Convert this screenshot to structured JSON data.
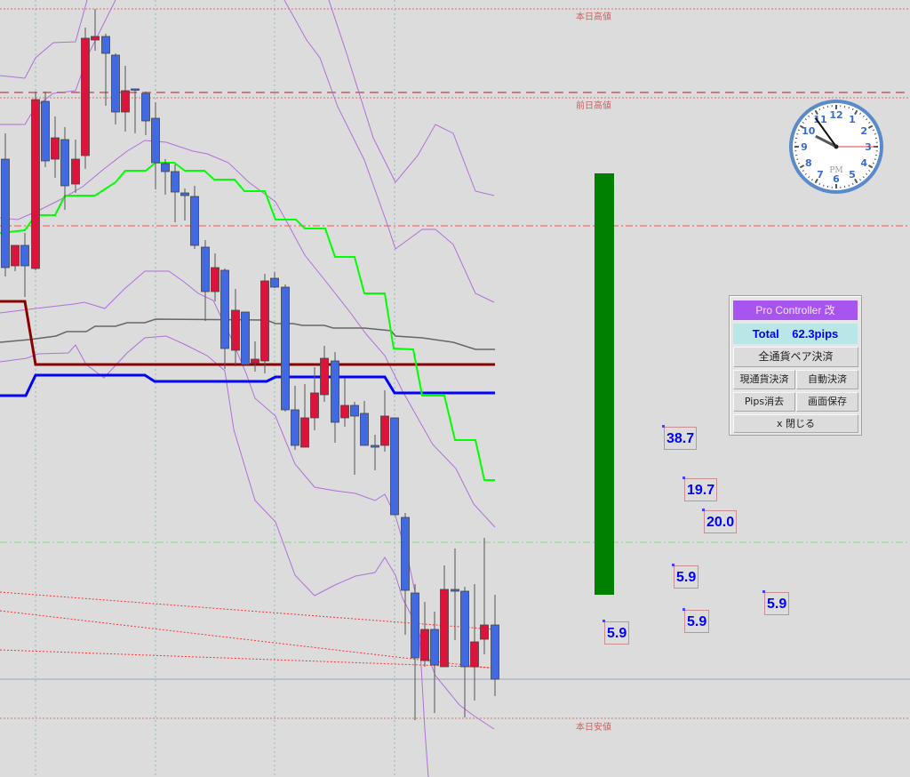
{
  "levels": {
    "today_high": "本日高値",
    "prev_high": "前日高値",
    "today_low": "本日安値"
  },
  "panel": {
    "title": "Pro Controller 改",
    "total_label": "Total",
    "total_value": "62.3pips",
    "close_all_pairs": "全通貨ペア決済",
    "close_current": "現通貨決済",
    "auto_close": "自動決済",
    "clear_pips": "Pips消去",
    "save_screen": "画面保存",
    "close": "x 閉じる"
  },
  "pips_labels": [
    "38.7",
    "19.7",
    "20.0",
    "5.9",
    "5.9",
    "5.9",
    "5.9"
  ],
  "clock": {
    "period": "PM",
    "hour": 9,
    "minute": 54
  },
  "colors": {
    "background": "#dcdcdc",
    "bull_candle": "#dc143c",
    "bear_candle": "#4169e1",
    "green_line": "#00ff00",
    "dark_red_line": "#8b0000",
    "blue_line": "#0000ff",
    "band_lines": "#b070d8",
    "pips_bar": "#008000",
    "panel_title": "#a855f0",
    "panel_total": "#b9e6e6"
  }
}
